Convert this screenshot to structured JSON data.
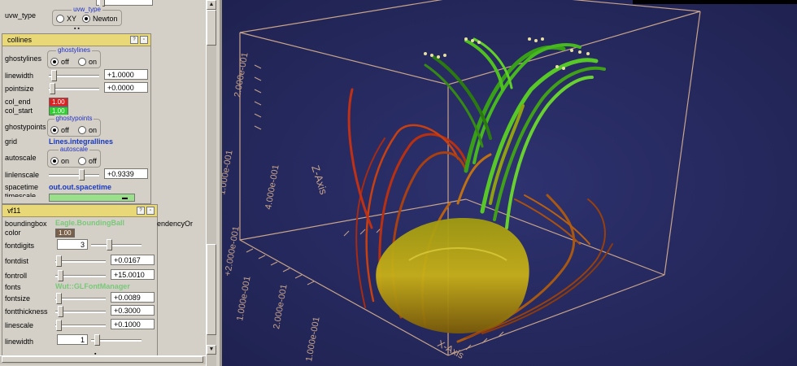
{
  "top_panel": {
    "uvw_type_label": "uvw_type",
    "group_title": "uvw_type",
    "option_xy": "XY",
    "option_newton": "Newton",
    "selected": "Newton"
  },
  "collines": {
    "title": "collines",
    "ghostylines_label": "ghostylines",
    "ghostylines_group": "ghostylines",
    "ghostylines_off": "off",
    "ghostylines_on": "on",
    "ghostylines_selected": "off",
    "linewidth_label": "linewidth",
    "linewidth_value": "+1.0000",
    "linewidth_level": 0.05,
    "pointsize_label": "pointsize",
    "pointsize_value": "+0.0000",
    "pointsize_level": 0.02,
    "col_end_label": "col_end",
    "col_end_value": "1.00",
    "col_end_color": "#e02020",
    "col_start_label": "col_start",
    "col_start_value": "1.00",
    "col_start_color": "#30d030",
    "ghostypoints_label": "ghostypoints",
    "ghostypoints_group": "ghostypoints",
    "ghostypoints_off": "off",
    "ghostypoints_on": "on",
    "grid_label": "grid",
    "grid_value": "Lines.integrallines",
    "autoscale_label": "autoscale",
    "autoscale_group": "autoscale",
    "autoscale_on": "on",
    "autoscale_off": "off",
    "linlenscale_label": "linlenscale",
    "linlenscale_value": "+0.9339",
    "linlenscale_level": 0.62,
    "spacetime_label": "spacetime",
    "spacetime_value": "out.out.spacetime",
    "timescale_label": "timescale"
  },
  "vf11": {
    "title": "vf11",
    "boundingbox_label": "boundingbox",
    "boundingbox_value": "Eagle.BoundingBall",
    "overflow_text": "endencyOr",
    "color_label": "color",
    "color_value": "1.00",
    "fontdigits_label": "fontdigits",
    "fontdigits_value": "3",
    "fontdist_label": "fontdist",
    "fontdist_value": "+0.0167",
    "fontroll_label": "fontroll",
    "fontroll_value": "+15.0010",
    "fonts_label": "fonts",
    "fonts_value": "Wut::GLFontManager",
    "fontsize_label": "fontsize",
    "fontsize_value": "+0.0089",
    "fontthickness_label": "fontthickness",
    "fontthickness_value": "+0.3000",
    "linescale_label": "linescale",
    "linescale_value": "+0.1000",
    "linewidth_label": "linewidth",
    "linewidth_value": "1"
  },
  "viewport": {
    "background": "#262a5c",
    "box_color": "#c8a48a",
    "axis_z": "Z-Axis",
    "axis_x": "X-Axis",
    "tick_labels": [
      "2.000e-001",
      "1.000e-001",
      "1.000e-001",
      "2.000e-001",
      "+2.000e-001",
      "1.000e-001",
      "4.000e-001"
    ]
  },
  "colors": {
    "panel_bg": "#d4d0c8",
    "title_bar": "#e8d878",
    "link_blue": "#1838c0",
    "link_green": "#78c878"
  }
}
